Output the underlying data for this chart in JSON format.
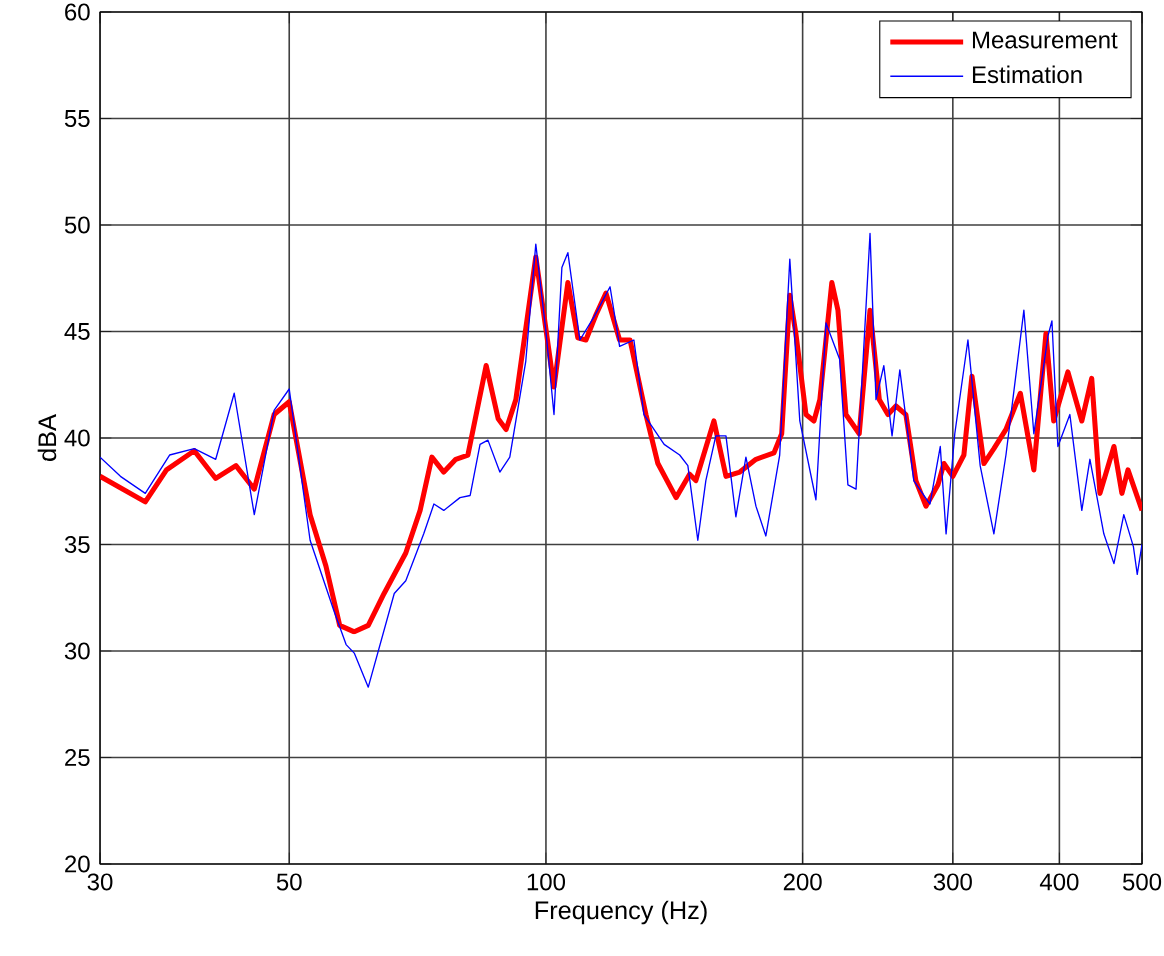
{
  "chart_data": {
    "type": "line",
    "xlabel": "Frequency (Hz)",
    "ylabel": "dBA",
    "log": "x",
    "grid": true,
    "legend": "top right",
    "xlim": [
      30,
      500
    ],
    "xticks": [
      30,
      50,
      100,
      200,
      300,
      400,
      500
    ],
    "ylim": [
      20,
      60
    ],
    "yticks": [
      20,
      25,
      30,
      35,
      40,
      45,
      50,
      55,
      60
    ],
    "series": [
      {
        "name": "Measurement",
        "color": "#ff0000",
        "x": [
          30,
          33.9,
          35.9,
          38.7,
          41.0,
          43.3,
          45.5,
          48.0,
          50,
          52.9,
          55.2,
          57.3,
          59.6,
          61.9,
          64.6,
          68.5,
          71.2,
          73.5,
          75.9,
          78.4,
          81.0,
          85.1,
          87.9,
          89.8,
          92.2,
          97.3,
          102.2,
          106.1,
          109.0,
          111.4,
          114.5,
          117.6,
          122,
          125.5,
          131.0,
          135.3,
          142.1,
          147.4,
          149.9,
          157.4,
          162.6,
          168.8,
          176.3,
          185.1,
          189,
          193.2,
          196.4,
          201.8,
          206.2,
          209.5,
          216.4,
          220,
          224.8,
          233,
          239.9,
          246,
          251.8,
          257.3,
          264.3,
          271.5,
          279,
          288.2,
          292.9,
          300,
          309.1,
          315.9,
          326.3,
          335.2,
          346.3,
          360,
          373.4,
          385.8,
          394,
          409.3,
          425,
          436.5,
          446.3,
          463.5,
          473.6,
          481.4,
          500
        ],
        "values": [
          38.2,
          37.0,
          38.5,
          39.4,
          38.1,
          38.7,
          37.6,
          41.1,
          41.7,
          36.4,
          34.0,
          31.2,
          30.9,
          31.2,
          32.7,
          34.6,
          36.6,
          39.1,
          38.4,
          39.0,
          39.2,
          43.4,
          40.9,
          40.4,
          41.8,
          48.5,
          42.4,
          47.3,
          44.7,
          44.6,
          45.8,
          46.8,
          44.6,
          44.6,
          41.1,
          38.8,
          37.2,
          38.3,
          38.0,
          40.8,
          38.2,
          38.4,
          39.0,
          39.3,
          40.2,
          46.7,
          44.9,
          41.1,
          40.8,
          41.8,
          47.3,
          46.0,
          41.1,
          40.2,
          46.0,
          41.8,
          41.1,
          41.5,
          41.1,
          38.0,
          36.8,
          37.8,
          38.8,
          38.2,
          39.2,
          42.9,
          38.8,
          39.5,
          40.4,
          42.1,
          38.5,
          44.9,
          40.8,
          43.1,
          40.8,
          42.8,
          37.4,
          39.6,
          37.4,
          38.5,
          36.6
        ]
      },
      {
        "name": "Estimation",
        "color": "#0000ff",
        "x": [
          30,
          31.7,
          33.9,
          36.2,
          38.7,
          41.0,
          43.1,
          45.5,
          48.0,
          50,
          52.9,
          56.4,
          58.3,
          59.6,
          61.9,
          66.4,
          68.5,
          71.9,
          73.9,
          75.9,
          79.3,
          81.5,
          83.7,
          85.5,
          88.3,
          90.7,
          94.7,
          97.3,
          100,
          102.2,
          104.4,
          106.1,
          109.6,
          113.9,
          118.9,
          122,
          126.8,
          130.3,
          137.6,
          143.5,
          146.7,
          150.7,
          154,
          158.2,
          162.6,
          167,
          171.6,
          176.3,
          181.1,
          188,
          193.2,
          198.5,
          207.3,
          213,
          221,
          226,
          231,
          239.9,
          243.8,
          249,
          254.6,
          260,
          270,
          282,
          290,
          294.6,
          301.6,
          312.5,
          323,
          335.2,
          346.3,
          355.8,
          363.5,
          373.4,
          388,
          392.1,
          398.5,
          411.5,
          425,
          434.4,
          451,
          463.5,
          476,
          488.5,
          493.6,
          500
        ],
        "values": [
          39.1,
          38.2,
          37.4,
          39.2,
          39.5,
          39.0,
          42.1,
          36.4,
          41.3,
          42.3,
          35.2,
          31.9,
          30.3,
          29.9,
          28.3,
          32.7,
          33.3,
          35.5,
          36.9,
          36.6,
          37.2,
          37.3,
          39.7,
          39.9,
          38.4,
          39.1,
          43.6,
          49.1,
          45.0,
          41.1,
          48.0,
          48.7,
          44.6,
          45.7,
          47.1,
          44.3,
          44.6,
          41.1,
          39.7,
          39.2,
          38.7,
          35.2,
          38.0,
          40.1,
          40.1,
          36.3,
          39.1,
          36.8,
          35.4,
          39.2,
          48.4,
          40.8,
          37.1,
          45.4,
          43.7,
          37.8,
          37.6,
          49.6,
          41.8,
          43.4,
          40.1,
          43.2,
          38.0,
          36.9,
          39.6,
          35.5,
          40.2,
          44.6,
          38.7,
          35.5,
          39.2,
          43.0,
          46.0,
          40.2,
          44.8,
          45.5,
          39.6,
          41.1,
          36.6,
          39.0,
          35.5,
          34.1,
          36.4,
          34.9,
          33.6,
          35.0
        ]
      }
    ]
  }
}
